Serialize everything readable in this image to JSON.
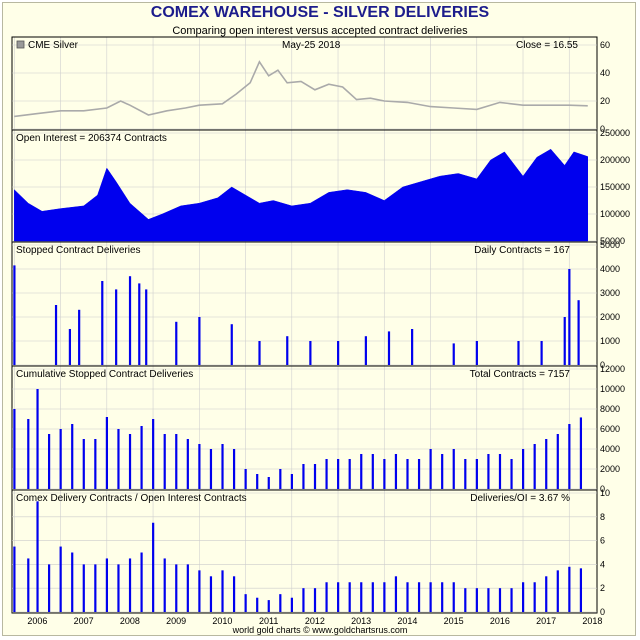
{
  "title": "COMEX WAREHOUSE - SILVER DELIVERIES",
  "subtitle": "Comparing open interest versus accepted contract deliveries",
  "footer": "world gold charts © www.goldchartsrus.com",
  "colors": {
    "price_line": "#aaaaaa",
    "area": "#0000ee",
    "grid": "#cccccc",
    "title": "#1c1c8c"
  },
  "chart_data": [
    {
      "type": "line",
      "panel": "price",
      "legend_label": "CME Silver",
      "date_label": "May-25  2018",
      "value_label": "Close = 16.55",
      "ylim": [
        0,
        60
      ],
      "yticks": [
        0,
        20,
        40,
        60
      ],
      "x": [
        2006.0,
        2006.5,
        2007.0,
        2007.5,
        2008.0,
        2008.3,
        2008.5,
        2008.9,
        2009.3,
        2009.7,
        2010.0,
        2010.5,
        2010.8,
        2011.1,
        2011.3,
        2011.5,
        2011.7,
        2011.9,
        2012.2,
        2012.5,
        2012.8,
        2013.1,
        2013.4,
        2013.7,
        2014.0,
        2014.5,
        2015.0,
        2015.5,
        2016.0,
        2016.5,
        2017.0,
        2017.5,
        2018.0,
        2018.4
      ],
      "y": [
        9,
        11,
        13,
        13,
        15,
        20,
        17,
        10,
        13,
        15,
        17,
        18,
        25,
        33,
        48,
        38,
        42,
        33,
        34,
        28,
        32,
        30,
        21,
        22,
        20,
        19,
        16,
        15,
        14,
        19,
        17,
        17,
        17,
        16.55
      ]
    },
    {
      "type": "area",
      "panel": "open_interest",
      "label": "Open Interest = 206374 Contracts",
      "ylim": [
        50000,
        250000
      ],
      "yticks": [
        50000,
        100000,
        150000,
        200000,
        250000
      ],
      "x": [
        2006.0,
        2006.3,
        2006.6,
        2007.0,
        2007.5,
        2007.8,
        2008.0,
        2008.2,
        2008.5,
        2008.9,
        2009.2,
        2009.6,
        2010.0,
        2010.4,
        2010.7,
        2011.0,
        2011.3,
        2011.6,
        2012.0,
        2012.4,
        2012.8,
        2013.2,
        2013.6,
        2014.0,
        2014.4,
        2014.8,
        2015.2,
        2015.6,
        2016.0,
        2016.3,
        2016.6,
        2017.0,
        2017.3,
        2017.6,
        2017.9,
        2018.1,
        2018.4
      ],
      "y": [
        145000,
        120000,
        105000,
        110000,
        115000,
        135000,
        185000,
        160000,
        120000,
        90000,
        100000,
        115000,
        120000,
        130000,
        150000,
        135000,
        120000,
        125000,
        115000,
        120000,
        140000,
        145000,
        140000,
        125000,
        150000,
        160000,
        170000,
        175000,
        165000,
        200000,
        215000,
        170000,
        205000,
        220000,
        190000,
        215000,
        206374
      ]
    },
    {
      "type": "bar",
      "panel": "stopped_daily",
      "label": "Stopped Contract Deliveries",
      "value_label": "Daily Contracts = 167",
      "ylim": [
        0,
        5000
      ],
      "yticks": [
        0,
        1000,
        2000,
        3000,
        4000,
        5000
      ],
      "x": [
        2006.0,
        2006.9,
        2007.2,
        2007.4,
        2007.9,
        2008.2,
        2008.5,
        2008.7,
        2008.85,
        2009.5,
        2010.0,
        2010.7,
        2011.3,
        2011.9,
        2012.4,
        2013.0,
        2013.6,
        2014.1,
        2014.6,
        2015.5,
        2016.0,
        2016.9,
        2017.4,
        2017.9,
        2018.0,
        2018.2
      ],
      "y": [
        4150,
        2500,
        1500,
        2300,
        3500,
        3150,
        3700,
        3400,
        3150,
        1800,
        2000,
        1700,
        1000,
        1200,
        1000,
        1000,
        1200,
        1400,
        1500,
        900,
        1000,
        1000,
        1000,
        2000,
        4000,
        2700
      ]
    },
    {
      "type": "bar",
      "panel": "cumulative",
      "label": "Cumulative Stopped Contract Deliveries",
      "value_label": "Total Contracts = 7157",
      "ylim": [
        0,
        12000
      ],
      "yticks": [
        0,
        2000,
        4000,
        6000,
        8000,
        10000,
        12000
      ],
      "x": [
        2006.0,
        2006.3,
        2006.5,
        2006.75,
        2007.0,
        2007.25,
        2007.5,
        2007.75,
        2008.0,
        2008.25,
        2008.5,
        2008.75,
        2009.0,
        2009.25,
        2009.5,
        2009.75,
        2010.0,
        2010.25,
        2010.5,
        2010.75,
        2011.0,
        2011.25,
        2011.5,
        2011.75,
        2012.0,
        2012.25,
        2012.5,
        2012.75,
        2013.0,
        2013.25,
        2013.5,
        2013.75,
        2014.0,
        2014.25,
        2014.5,
        2014.75,
        2015.0,
        2015.25,
        2015.5,
        2015.75,
        2016.0,
        2016.25,
        2016.5,
        2016.75,
        2017.0,
        2017.25,
        2017.5,
        2017.75,
        2018.0,
        2018.25
      ],
      "y": [
        8000,
        7000,
        10000,
        5500,
        6000,
        6500,
        5000,
        5000,
        7200,
        6000,
        5500,
        6300,
        7000,
        5500,
        5500,
        5000,
        4500,
        4000,
        4500,
        4000,
        2000,
        1500,
        1200,
        2000,
        1500,
        2500,
        2500,
        3000,
        3000,
        3000,
        3500,
        3500,
        3000,
        3500,
        3000,
        3000,
        4000,
        3500,
        4000,
        3000,
        3000,
        3500,
        3500,
        3000,
        4000,
        4500,
        5000,
        5500,
        6500,
        7157
      ]
    },
    {
      "type": "bar",
      "panel": "ratio",
      "label": "Comex Delivery Contracts / Open Interest Contracts",
      "value_label": "Deliveries/OI = 3.67 %",
      "ylim": [
        0,
        10
      ],
      "yticks": [
        0,
        2,
        4,
        6,
        8,
        10
      ],
      "x": [
        2006.0,
        2006.3,
        2006.5,
        2006.75,
        2007.0,
        2007.25,
        2007.5,
        2007.75,
        2008.0,
        2008.25,
        2008.5,
        2008.75,
        2009.0,
        2009.25,
        2009.5,
        2009.75,
        2010.0,
        2010.25,
        2010.5,
        2010.75,
        2011.0,
        2011.25,
        2011.5,
        2011.75,
        2012.0,
        2012.25,
        2012.5,
        2012.75,
        2013.0,
        2013.25,
        2013.5,
        2013.75,
        2014.0,
        2014.25,
        2014.5,
        2014.75,
        2015.0,
        2015.25,
        2015.5,
        2015.75,
        2016.0,
        2016.25,
        2016.5,
        2016.75,
        2017.0,
        2017.25,
        2017.5,
        2017.75,
        2018.0,
        2018.25
      ],
      "y": [
        5.5,
        4.5,
        9.3,
        4.0,
        5.5,
        5.0,
        4.0,
        4.0,
        4.5,
        4.0,
        4.5,
        5.0,
        7.5,
        4.5,
        4.0,
        4.0,
        3.5,
        3.0,
        3.5,
        3.0,
        1.5,
        1.2,
        1.0,
        1.5,
        1.2,
        2.0,
        2.0,
        2.5,
        2.5,
        2.5,
        2.5,
        2.5,
        2.5,
        3.0,
        2.5,
        2.5,
        2.5,
        2.5,
        2.5,
        2.0,
        2.0,
        2.0,
        2.0,
        2.0,
        2.5,
        2.5,
        3.0,
        3.5,
        3.8,
        3.67
      ]
    }
  ],
  "x_axis": {
    "ticks": [
      "2006",
      "2007",
      "2008",
      "2009",
      "2010",
      "2011",
      "2012",
      "2013",
      "2014",
      "2015",
      "2016",
      "2017",
      "2018"
    ]
  }
}
